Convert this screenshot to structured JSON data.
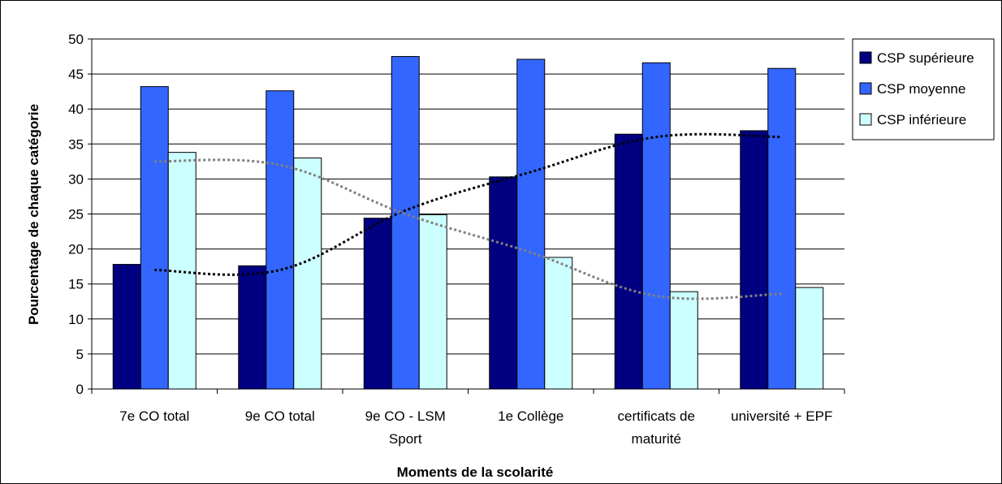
{
  "chart_data": {
    "type": "bar",
    "title": "",
    "xlabel": "Moments de la scolarité",
    "ylabel": "Pourcentage de chaque catégorie",
    "ylim": [
      0,
      50
    ],
    "yticks": [
      0,
      5,
      10,
      15,
      20,
      25,
      30,
      35,
      40,
      45,
      50
    ],
    "grid": true,
    "legend_position": "right",
    "categories": [
      [
        "7e  CO total"
      ],
      [
        "9e CO total"
      ],
      [
        "9e CO - LSM",
        "Sport"
      ],
      [
        "1e Collège"
      ],
      [
        "certificats de",
        "maturité"
      ],
      [
        "université + EPF"
      ]
    ],
    "series": [
      {
        "name": "CSP supérieure",
        "color": "#000080",
        "values": [
          17.8,
          17.6,
          24.4,
          30.3,
          36.4,
          36.9
        ]
      },
      {
        "name": "CSP moyenne",
        "color": "#3366ff",
        "values": [
          43.2,
          42.6,
          47.5,
          47.1,
          46.6,
          45.8
        ]
      },
      {
        "name": "CSP inférieure",
        "color": "#ccffff",
        "values": [
          33.8,
          33.0,
          24.9,
          18.8,
          13.9,
          14.5
        ]
      }
    ],
    "trendlines": [
      {
        "series": "CSP supérieure",
        "color": "#000000",
        "style": "dotted",
        "values": [
          17.0,
          17.0,
          25.5,
          31.0,
          36.0,
          36.0
        ]
      },
      {
        "series": "CSP inférieure",
        "color": "#808080",
        "style": "dotted",
        "values": [
          32.5,
          32.0,
          25.0,
          19.5,
          13.3,
          13.6
        ]
      }
    ]
  }
}
